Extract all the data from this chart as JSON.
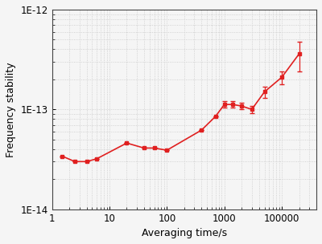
{
  "x": [
    1.5,
    2.5,
    4,
    6,
    20,
    40,
    60,
    100,
    400,
    700,
    1000,
    1400,
    2000,
    3000,
    5000,
    10000,
    20000
  ],
  "y": [
    3.4e-14,
    3e-14,
    3e-14,
    3.2e-14,
    4.6e-14,
    4.1e-14,
    4.1e-14,
    3.9e-14,
    6.2e-14,
    8.5e-14,
    1.12e-13,
    1.12e-13,
    1.08e-13,
    1e-13,
    1.5e-13,
    2.1e-13,
    3.6e-13
  ],
  "yerr_low": [
    0,
    0,
    0,
    0,
    0,
    0,
    0,
    0,
    0,
    0,
    8e-15,
    8e-15,
    8e-15,
    8e-15,
    2e-14,
    3e-14,
    1.2e-13
  ],
  "yerr_high": [
    0,
    0,
    0,
    0,
    0,
    0,
    0,
    0,
    0,
    0,
    8e-15,
    8e-15,
    8e-15,
    8e-15,
    2e-14,
    3e-14,
    1.2e-13
  ],
  "color": "#e02020",
  "marker": "s",
  "markersize": 3,
  "linewidth": 1.2,
  "capsize": 2,
  "xlabel": "Averaging time/s",
  "ylabel": "Frequency stability",
  "xlim": [
    1,
    40000
  ],
  "ylim": [
    1e-14,
    1e-12
  ],
  "background_color": "#f5f5f5",
  "grid_color": "#c8c8c8",
  "grid_linestyle": ":",
  "axis_fontsize": 9,
  "tick_fontsize": 8.5
}
